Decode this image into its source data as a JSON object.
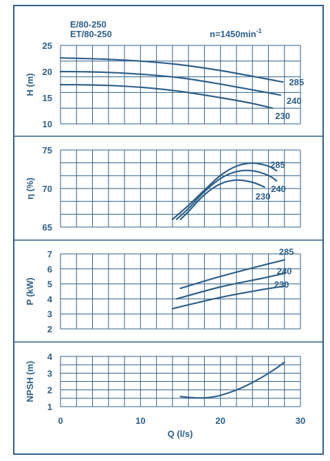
{
  "header": {
    "model_line_1": "E/80-250",
    "model_line_2": "ET/80-250",
    "speed": "n=1450min",
    "speed_exponent": "-1"
  },
  "x_axis": {
    "label": "Q (l/s)",
    "range": [
      0,
      30
    ],
    "tick_labels": [
      "0",
      "10",
      "20",
      "30"
    ]
  },
  "chart_data": [
    {
      "type": "line",
      "name": "head",
      "ylabel": "H (m)",
      "xlim": [
        0,
        30
      ],
      "ylim": [
        10,
        25
      ],
      "y_tick_labels": [
        "25",
        "20",
        "15",
        "10"
      ],
      "grid": true,
      "series": [
        {
          "name": "285",
          "x": [
            0,
            5,
            10,
            15,
            20,
            24,
            27.8
          ],
          "y": [
            22.6,
            22.4,
            22.0,
            21.3,
            20.2,
            19.1,
            18.0
          ]
        },
        {
          "name": "240",
          "x": [
            0,
            5,
            10,
            15,
            20,
            24,
            27.5
          ],
          "y": [
            20.0,
            19.9,
            19.5,
            18.8,
            17.6,
            16.5,
            15.5
          ]
        },
        {
          "name": "230",
          "x": [
            0,
            5,
            10,
            15,
            20,
            24,
            26.5
          ],
          "y": [
            17.5,
            17.4,
            17.0,
            16.2,
            15.0,
            13.9,
            13.0
          ]
        }
      ]
    },
    {
      "type": "line",
      "name": "efficiency",
      "ylabel": "η (%)",
      "xlim": [
        0,
        30
      ],
      "ylim": [
        65,
        75
      ],
      "y_tick_labels": [
        "75",
        "70",
        "65"
      ],
      "grid": true,
      "series": [
        {
          "name": "285",
          "x": [
            14,
            16,
            18,
            20,
            22,
            24,
            26,
            27
          ],
          "y": [
            66.0,
            67.8,
            69.8,
            71.7,
            72.9,
            73.3,
            72.9,
            72.3
          ]
        },
        {
          "name": "240",
          "x": [
            14.5,
            16,
            18,
            20,
            22,
            24,
            26,
            27
          ],
          "y": [
            66.0,
            67.4,
            69.6,
            71.3,
            72.2,
            72.3,
            71.7,
            71.0
          ]
        },
        {
          "name": "230",
          "x": [
            15,
            16,
            18,
            20,
            22,
            24,
            25.5
          ],
          "y": [
            66.0,
            67.0,
            69.2,
            70.6,
            71.1,
            70.8,
            70.2
          ]
        }
      ]
    },
    {
      "type": "line",
      "name": "power",
      "ylabel": "P (kW)",
      "xlim": [
        0,
        30
      ],
      "ylim": [
        2,
        7
      ],
      "y_tick_labels": [
        "7",
        "6",
        "5",
        "4",
        "3",
        "2"
      ],
      "grid": true,
      "series": [
        {
          "name": "285",
          "x": [
            15,
            20,
            25,
            28
          ],
          "y": [
            4.7,
            5.5,
            6.2,
            6.6
          ]
        },
        {
          "name": "240",
          "x": [
            14.5,
            20,
            25,
            28
          ],
          "y": [
            4.0,
            4.8,
            5.35,
            5.7
          ]
        },
        {
          "name": "230",
          "x": [
            14,
            20,
            25,
            28
          ],
          "y": [
            3.35,
            4.1,
            4.6,
            4.85
          ]
        }
      ]
    },
    {
      "type": "line",
      "name": "npsh",
      "ylabel": "NPSH (m)",
      "xlim": [
        0,
        30
      ],
      "ylim": [
        1,
        4
      ],
      "y_tick_labels": [
        "4",
        "3",
        "2",
        "1"
      ],
      "grid": true,
      "series": [
        {
          "name": "",
          "x": [
            15,
            17,
            19,
            21,
            23,
            25,
            27,
            28
          ],
          "y": [
            1.6,
            1.52,
            1.57,
            1.82,
            2.2,
            2.7,
            3.3,
            3.65
          ]
        }
      ]
    }
  ],
  "colors": {
    "ink": "#2c5f8a",
    "background": "#ffffff"
  }
}
